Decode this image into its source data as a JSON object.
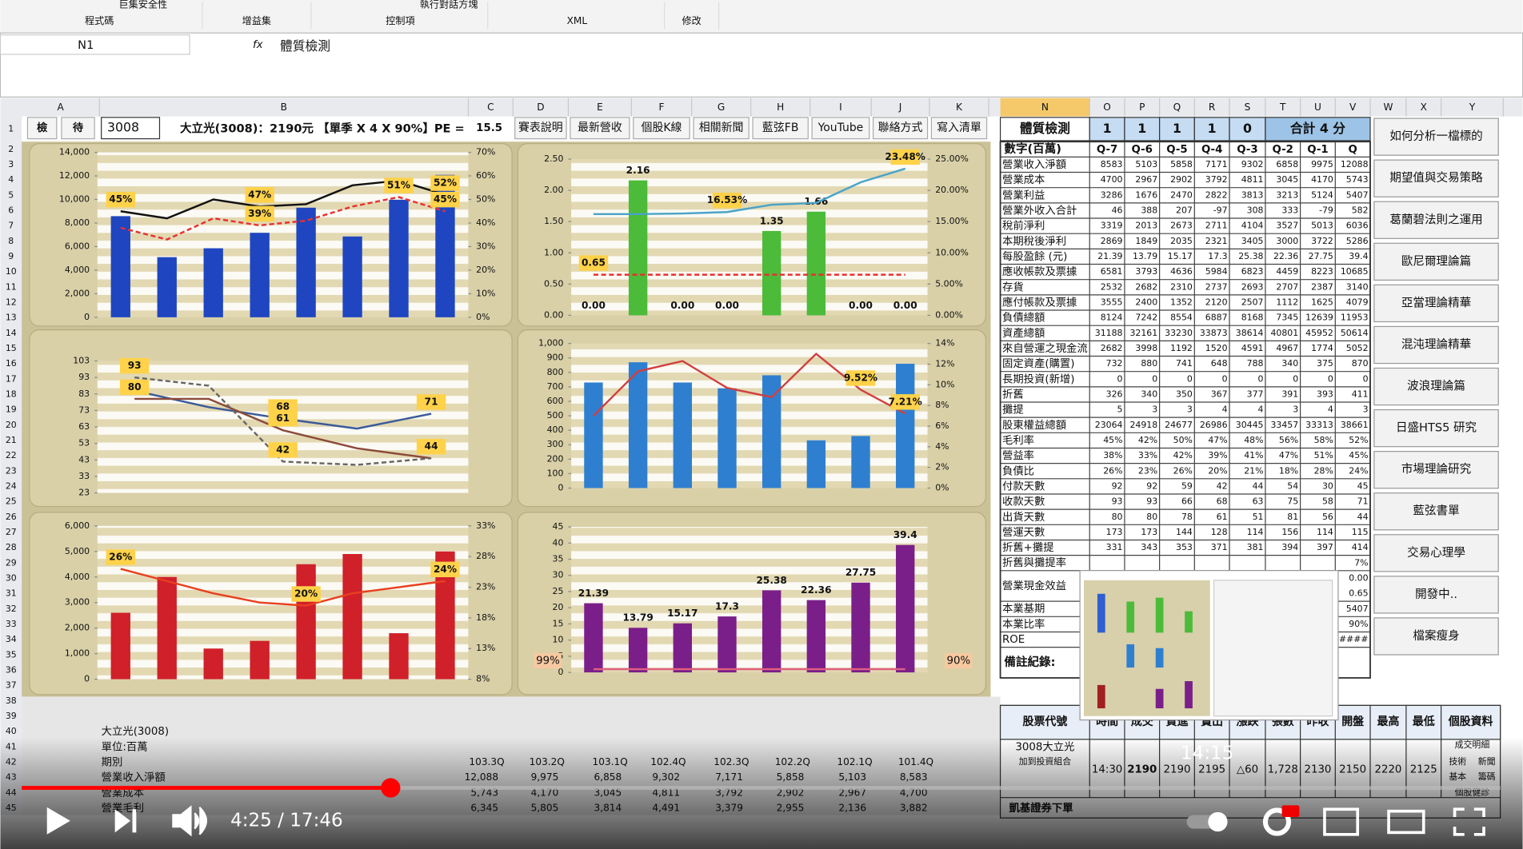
{
  "ribbon": {
    "items": [
      "巨集安全性",
      "執行對話方塊"
    ],
    "groups": [
      "程式碼",
      "增益集",
      "控制項",
      "XML",
      "修改"
    ]
  },
  "formula_bar": {
    "name_box": "N1",
    "fx": "fx",
    "formula": "體質檢測"
  },
  "column_headers_left": [
    "A",
    "B",
    "C",
    "D",
    "E",
    "F",
    "G",
    "H",
    "I",
    "J",
    "K"
  ],
  "column_headers_right": [
    "N",
    "O",
    "P",
    "Q",
    "R",
    "S",
    "T",
    "U",
    "V",
    "W",
    "X",
    "Y"
  ],
  "row_numbers": [
    1,
    2,
    3,
    4,
    5,
    6,
    7,
    8,
    9,
    10,
    11,
    12,
    13,
    14,
    15,
    16,
    17,
    18,
    19,
    20,
    21,
    22,
    23,
    24,
    25,
    26,
    27,
    28,
    29,
    30,
    31,
    32,
    33,
    34,
    35,
    36,
    37,
    38,
    39,
    40,
    41,
    42,
    43,
    44,
    45
  ],
  "toolbar": {
    "buttons_left": [
      "檢",
      "待"
    ],
    "code": "3008",
    "quote": "大立光(3008)：2190元 【單季 X 4 X 90%】PE =",
    "pe": "15.5",
    "buttons": [
      "賽表說明",
      "最新營收",
      "個股K線",
      "相關新聞",
      "藍弦FB",
      "YouTube",
      "聯絡方式",
      "寫入清單"
    ]
  },
  "chart_data": [
    {
      "type": "bar",
      "ylim": [
        0,
        14000
      ],
      "yticks": [
        0,
        {
          "value": 2000,
          "label": "2,000"
        },
        {
          "value": 4000,
          "label": "4,000"
        },
        {
          "value": 6000,
          "label": "6,000"
        },
        {
          "value": 8000,
          "label": "8,000"
        },
        {
          "value": 10000,
          "label": "10,000"
        },
        {
          "value": 12000,
          "label": "12,000"
        },
        {
          "value": 14000,
          "label": "14,000"
        }
      ],
      "y2lim": [
        0,
        70
      ],
      "y2ticks": [
        {
          "value": 0,
          "label": "0%"
        },
        {
          "value": 10,
          "label": "10%"
        },
        {
          "value": 20,
          "label": "20%"
        },
        {
          "value": 30,
          "label": "30%"
        },
        {
          "value": 40,
          "label": "40%"
        },
        {
          "value": 50,
          "label": "50%"
        },
        {
          "value": 60,
          "label": "60%"
        },
        {
          "value": 70,
          "label": "70%"
        }
      ],
      "series": [
        {
          "type": "bar",
          "color": "#1f46c0",
          "values": [
            8583,
            5103,
            5858,
            7171,
            9302,
            6858,
            9975,
            12088
          ]
        },
        {
          "type": "line",
          "axis": "y2",
          "color": "#111111",
          "values": [
            45,
            42,
            50,
            47,
            48,
            56,
            58,
            52
          ],
          "value_labels": [
            "45%",
            null,
            null,
            "47%",
            null,
            null,
            null,
            "52%"
          ]
        },
        {
          "type": "line",
          "axis": "y2",
          "color": "#e83030",
          "dash": true,
          "values": [
            38,
            33,
            42,
            39,
            41,
            47,
            51,
            45
          ],
          "value_labels": [
            null,
            null,
            null,
            "39%",
            null,
            null,
            "51%",
            "45%"
          ]
        }
      ]
    },
    {
      "type": "bar",
      "ylim": [
        0,
        2.5
      ],
      "yticks": [
        {
          "value": 0,
          "label": "0.00"
        },
        {
          "value": 0.5,
          "label": "0.50"
        },
        {
          "value": 1,
          "label": "1.00"
        },
        {
          "value": 1.5,
          "label": "1.50"
        },
        {
          "value": 2,
          "label": "2.00"
        },
        {
          "value": 2.5,
          "label": "2.50"
        }
      ],
      "y2lim": [
        0,
        25
      ],
      "y2ticks": [
        {
          "value": 0,
          "label": "0.00%"
        },
        {
          "value": 5,
          "label": "5.00%"
        },
        {
          "value": 10,
          "label": "10.00%"
        },
        {
          "value": 15,
          "label": "15.00%"
        },
        {
          "value": 20,
          "label": "20.00%"
        },
        {
          "value": 25,
          "label": "25.00%"
        }
      ],
      "series": [
        {
          "type": "bar",
          "color": "#4cbb3a",
          "values": [
            0,
            2.16,
            0,
            0,
            1.35,
            1.66,
            0,
            0
          ],
          "value_labels": [
            "0.00",
            "2.16",
            "0.00",
            "0.00",
            "1.35",
            "1.66",
            "0.00",
            "0.00"
          ]
        },
        {
          "type": "line",
          "axis": "y2",
          "color": "#4aa3c8",
          "values": [
            16.2,
            16.2,
            16.3,
            16.53,
            17.7,
            18.0,
            21.3,
            23.48
          ],
          "value_labels": [
            null,
            null,
            null,
            "16.53%",
            null,
            null,
            null,
            "23.48%"
          ]
        },
        {
          "type": "line",
          "color": "#e83030",
          "dash": true,
          "values": [
            0.65,
            0.65,
            0.65,
            0.65,
            0.65,
            0.65,
            0.65,
            0.65
          ],
          "value_labels": [
            "0.65",
            null,
            null,
            null,
            null,
            null,
            null,
            null
          ]
        }
      ]
    },
    {
      "type": "line",
      "ylim": [
        23,
        103
      ],
      "yticks": [
        23,
        33,
        43,
        53,
        63,
        73,
        83,
        93,
        103
      ],
      "series": [
        {
          "type": "line",
          "color": "#3a5a9a",
          "values": [
            85,
            75,
            68,
            62,
            71
          ],
          "value_labels": [
            null,
            null,
            "68",
            null,
            "71"
          ]
        },
        {
          "type": "line",
          "color": "#8b4a3a",
          "values": [
            80,
            80,
            61,
            50,
            44
          ],
          "value_labels": [
            "80",
            null,
            "61",
            null,
            "44"
          ]
        },
        {
          "type": "line",
          "color": "#666666",
          "dash": true,
          "values": [
            93,
            88,
            42,
            40,
            44
          ],
          "value_labels": [
            "93",
            null,
            "42",
            null,
            null
          ]
        }
      ]
    },
    {
      "type": "bar",
      "ylim": [
        0,
        1000
      ],
      "yticks": [
        0,
        100,
        200,
        300,
        400,
        500,
        600,
        700,
        800,
        900,
        {
          "value": 1000,
          "label": "1,000"
        }
      ],
      "y2lim": [
        0,
        14
      ],
      "y2ticks": [
        {
          "value": 0,
          "label": "0%"
        },
        {
          "value": 2,
          "label": "2%"
        },
        {
          "value": 4,
          "label": "4%"
        },
        {
          "value": 6,
          "label": "6%"
        },
        {
          "value": 8,
          "label": "8%"
        },
        {
          "value": 10,
          "label": "10%"
        },
        {
          "value": 12,
          "label": "12%"
        },
        {
          "value": 14,
          "label": "14%"
        }
      ],
      "series": [
        {
          "type": "bar",
          "color": "#2f7fd0",
          "values": [
            730,
            870,
            730,
            690,
            780,
            330,
            360,
            860
          ]
        },
        {
          "type": "line",
          "axis": "y2",
          "color": "#d04040",
          "values": [
            7.0,
            11.3,
            12.3,
            9.7,
            8.8,
            13.0,
            9.52,
            7.21
          ],
          "value_labels": [
            null,
            null,
            null,
            null,
            null,
            null,
            "9.52%",
            "7.21%"
          ]
        }
      ]
    },
    {
      "type": "bar",
      "ylim": [
        0,
        6000
      ],
      "yticks": [
        0,
        {
          "value": 1000,
          "label": "1,000"
        },
        {
          "value": 2000,
          "label": "2,000"
        },
        {
          "value": 3000,
          "label": "3,000"
        },
        {
          "value": 4000,
          "label": "4,000"
        },
        {
          "value": 5000,
          "label": "5,000"
        },
        {
          "value": 6000,
          "label": "6,000"
        }
      ],
      "y2lim": [
        8,
        33
      ],
      "y2ticks": [
        {
          "value": 8,
          "label": "8%"
        },
        {
          "value": 13,
          "label": "13%"
        },
        {
          "value": 18,
          "label": "18%"
        },
        {
          "value": 23,
          "label": "23%"
        },
        {
          "value": 28,
          "label": "28%"
        },
        {
          "value": 33,
          "label": "33%"
        }
      ],
      "series": [
        {
          "type": "bar",
          "color": "#d0202a",
          "values": [
            2600,
            4000,
            1200,
            1500,
            4500,
            4900,
            1800,
            5000
          ]
        },
        {
          "type": "line",
          "axis": "y2",
          "color": "#e84020",
          "values": [
            26,
            24,
            22,
            20.5,
            20,
            22,
            23,
            24
          ],
          "value_labels": [
            "26%",
            null,
            null,
            null,
            "20%",
            null,
            null,
            "24%"
          ]
        }
      ]
    },
    {
      "type": "bar",
      "ylim": [
        0,
        45
      ],
      "yticks": [
        0,
        5,
        10,
        15,
        20,
        25,
        30,
        35,
        40,
        45
      ],
      "annotations": [
        "99%",
        "90%"
      ],
      "series": [
        {
          "type": "bar",
          "color": "#7a1f8a",
          "values": [
            21.39,
            13.79,
            15.17,
            17.3,
            25.38,
            22.36,
            27.75,
            39.4
          ],
          "value_labels": [
            "21.39",
            "13.79",
            "15.17",
            "17.3",
            "25.38",
            "22.36",
            "27.75",
            "39.4"
          ]
        },
        {
          "type": "line",
          "color": "#e06080",
          "values": [
            1,
            1,
            1,
            1,
            1,
            1,
            1,
            1
          ]
        }
      ]
    }
  ],
  "fitness_table": {
    "title": "體質檢測",
    "scores": [
      "1",
      "1",
      "1",
      "1",
      "0"
    ],
    "total": "合計 4 分",
    "unit": "數字(百萬)",
    "periods": [
      "Q-7",
      "Q-6",
      "Q-5",
      "Q-4",
      "Q-3",
      "Q-2",
      "Q-1",
      "Q"
    ],
    "rows": [
      {
        "label": "營業收入淨額",
        "values": [
          "8583",
          "5103",
          "5858",
          "7171",
          "9302",
          "6858",
          "9975",
          "12088"
        ]
      },
      {
        "label": "營業成本",
        "values": [
          "4700",
          "2967",
          "2902",
          "3792",
          "4811",
          "3045",
          "4170",
          "5743"
        ]
      },
      {
        "label": "營業利益",
        "values": [
          "3286",
          "1676",
          "2470",
          "2822",
          "3813",
          "3213",
          "5124",
          "5407"
        ]
      },
      {
        "label": "營業外收入合計",
        "values": [
          "46",
          "388",
          "207",
          "-97",
          "308",
          "333",
          "-79",
          "582"
        ]
      },
      {
        "label": "稅前淨利",
        "values": [
          "3319",
          "2013",
          "2673",
          "2711",
          "4104",
          "3527",
          "5013",
          "6036"
        ]
      },
      {
        "label": "本期稅後淨利",
        "values": [
          "2869",
          "1849",
          "2035",
          "2321",
          "3405",
          "3000",
          "3722",
          "5286"
        ]
      },
      {
        "label": "每股盈餘 (元)",
        "values": [
          "21.39",
          "13.79",
          "15.17",
          "17.3",
          "25.38",
          "22.36",
          "27.75",
          "39.4"
        ]
      },
      {
        "label": "應收帳款及票據",
        "values": [
          "6581",
          "3793",
          "4636",
          "5984",
          "6823",
          "4459",
          "8223",
          "10685"
        ]
      },
      {
        "label": "存貨",
        "values": [
          "2532",
          "2682",
          "2310",
          "2737",
          "2693",
          "2707",
          "2387",
          "3140"
        ]
      },
      {
        "label": "應付帳款及票據",
        "values": [
          "3555",
          "2400",
          "1352",
          "2120",
          "2507",
          "1112",
          "1625",
          "4079"
        ]
      },
      {
        "label": "負債總額",
        "values": [
          "8124",
          "7242",
          "8554",
          "6887",
          "8168",
          "7345",
          "12639",
          "11953"
        ]
      },
      {
        "label": "資產總額",
        "values": [
          "31188",
          "32161",
          "33230",
          "33873",
          "38614",
          "40801",
          "45952",
          "50614"
        ]
      },
      {
        "label": "來自營運之現金流",
        "values": [
          "2682",
          "3998",
          "1192",
          "1520",
          "4591",
          "4967",
          "1774",
          "5052"
        ]
      },
      {
        "label": "固定資產(購置)",
        "values": [
          "732",
          "880",
          "741",
          "648",
          "788",
          "340",
          "375",
          "870"
        ]
      },
      {
        "label": "長期投資(新增)",
        "values": [
          "0",
          "0",
          "0",
          "0",
          "0",
          "0",
          "0",
          "0"
        ]
      },
      {
        "label": "折舊",
        "values": [
          "326",
          "340",
          "350",
          "367",
          "377",
          "391",
          "393",
          "411"
        ]
      },
      {
        "label": "攤提",
        "values": [
          "5",
          "3",
          "3",
          "4",
          "4",
          "3",
          "4",
          "3"
        ]
      },
      {
        "label": "股東權益總額",
        "values": [
          "23064",
          "24918",
          "24677",
          "26986",
          "30445",
          "33457",
          "33313",
          "38661"
        ]
      },
      {
        "label": "毛利率",
        "values": [
          "45%",
          "42%",
          "50%",
          "47%",
          "48%",
          "56%",
          "58%",
          "52%"
        ]
      },
      {
        "label": "營益率",
        "values": [
          "38%",
          "33%",
          "42%",
          "39%",
          "41%",
          "47%",
          "51%",
          "45%"
        ]
      },
      {
        "label": "負債比",
        "values": [
          "26%",
          "23%",
          "26%",
          "20%",
          "21%",
          "18%",
          "28%",
          "24%"
        ]
      },
      {
        "label": "付款天數",
        "values": [
          "92",
          "92",
          "59",
          "42",
          "44",
          "54",
          "30",
          "45"
        ]
      },
      {
        "label": "收款天數",
        "values": [
          "93",
          "93",
          "66",
          "68",
          "63",
          "75",
          "58",
          "71"
        ]
      },
      {
        "label": "出貨天數",
        "values": [
          "80",
          "80",
          "78",
          "61",
          "51",
          "81",
          "56",
          "44"
        ]
      },
      {
        "label": "營運天數",
        "values": [
          "173",
          "173",
          "144",
          "128",
          "114",
          "156",
          "114",
          "115"
        ]
      },
      {
        "label": "折舊+攤提",
        "values": [
          "331",
          "343",
          "353",
          "371",
          "381",
          "394",
          "397",
          "414"
        ]
      }
    ],
    "extra_rows": [
      {
        "label": "折舊與攤提率",
        "values": [
          "7%"
        ]
      },
      {
        "label": "營業現金效益",
        "values": [
          "0.00",
          "0.65"
        ]
      },
      {
        "label": "本業基期",
        "values": [
          "5407"
        ]
      },
      {
        "label": "本業比率",
        "values": [
          "90%"
        ]
      },
      {
        "label": "ROE",
        "values": [
          "#####"
        ]
      }
    ],
    "note": "備註紀錄:"
  },
  "side_buttons": [
    "如何分析一檔標的",
    "期望值與交易策略",
    "葛蘭碧法則之運用",
    "歐尼爾理論篇",
    "亞當理論精華",
    "混沌理論精華",
    "波浪理論篇",
    "日盛HTS5 研究",
    "市場理論研究",
    "藍弦書單",
    "交易心理學",
    "開發中..",
    "檔案瘦身"
  ],
  "summary": {
    "lines": [
      "大立光(3008)",
      "單位:百萬"
    ],
    "period_label": "期別",
    "periods": [
      "103.3Q",
      "103.2Q",
      "103.1Q",
      "102.4Q",
      "102.3Q",
      "102.2Q",
      "102.1Q",
      "101.4Q"
    ],
    "rows": [
      {
        "label": "營業收入淨額",
        "values": [
          "12,088",
          "9,975",
          "6,858",
          "9,302",
          "7,171",
          "5,858",
          "5,103",
          "8,583"
        ]
      },
      {
        "label": "營業成本",
        "values": [
          "5,743",
          "4,170",
          "3,045",
          "4,811",
          "3,792",
          "2,902",
          "2,967",
          "4,700"
        ]
      },
      {
        "label": "營業毛利",
        "values": [
          "6,345",
          "5,805",
          "3,814",
          "4,491",
          "3,379",
          "2,955",
          "2,136",
          "3,882"
        ]
      }
    ]
  },
  "quote_table": {
    "headers": [
      "股票代號",
      "時間",
      "成交",
      "買進",
      "賣出",
      "漲跌",
      "張數",
      "昨收",
      "開盤",
      "最高",
      "最低",
      "個股資料"
    ],
    "stock": [
      "3008大立光",
      "加到投資組合"
    ],
    "values": [
      "14:30",
      "2190",
      "2190",
      "2195",
      "△60",
      "1,728",
      "2130",
      "2150",
      "2220",
      "2125"
    ],
    "links": [
      "成交明細",
      "技術",
      "新聞",
      "基本",
      "籌碼",
      "個股健診"
    ],
    "order": "凱基證券下單"
  },
  "video": {
    "time": "4:25 / 17:46",
    "preview_time": "14:15"
  }
}
